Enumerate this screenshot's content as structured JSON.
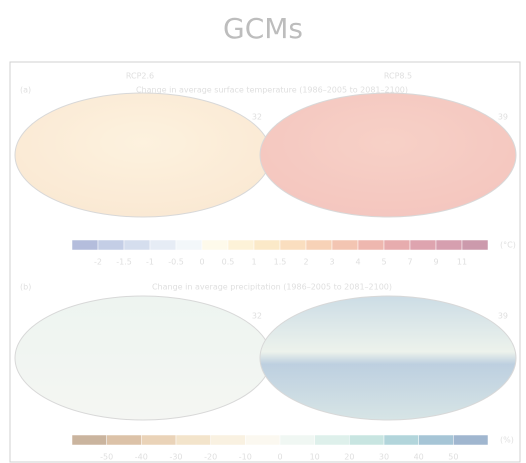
{
  "header": {
    "title": "GCMs"
  },
  "figure": {
    "columns": [
      "RCP2.6",
      "RCP8.5"
    ],
    "panel_a": {
      "label": "(a)",
      "title": "Change in average surface temperature (1986–2005 to 2081–2100)",
      "model_counts": [
        "32",
        "39"
      ],
      "scale_labels": [
        "-2",
        "-1.5",
        "-1",
        "-0.5",
        "0",
        "0.5",
        "1",
        "1.5",
        "2",
        "3",
        "4",
        "5",
        "7",
        "9",
        "11"
      ],
      "unit": "(°C)"
    },
    "panel_b": {
      "label": "(b)",
      "title": "Change in average precipitation (1986–2005 to 2081–2100)",
      "model_counts": [
        "32",
        "39"
      ],
      "scale_labels": [
        "-50",
        "-40",
        "-30",
        "-20",
        "-10",
        "0",
        "10",
        "20",
        "30",
        "40",
        "50"
      ],
      "unit": "(%)"
    }
  }
}
